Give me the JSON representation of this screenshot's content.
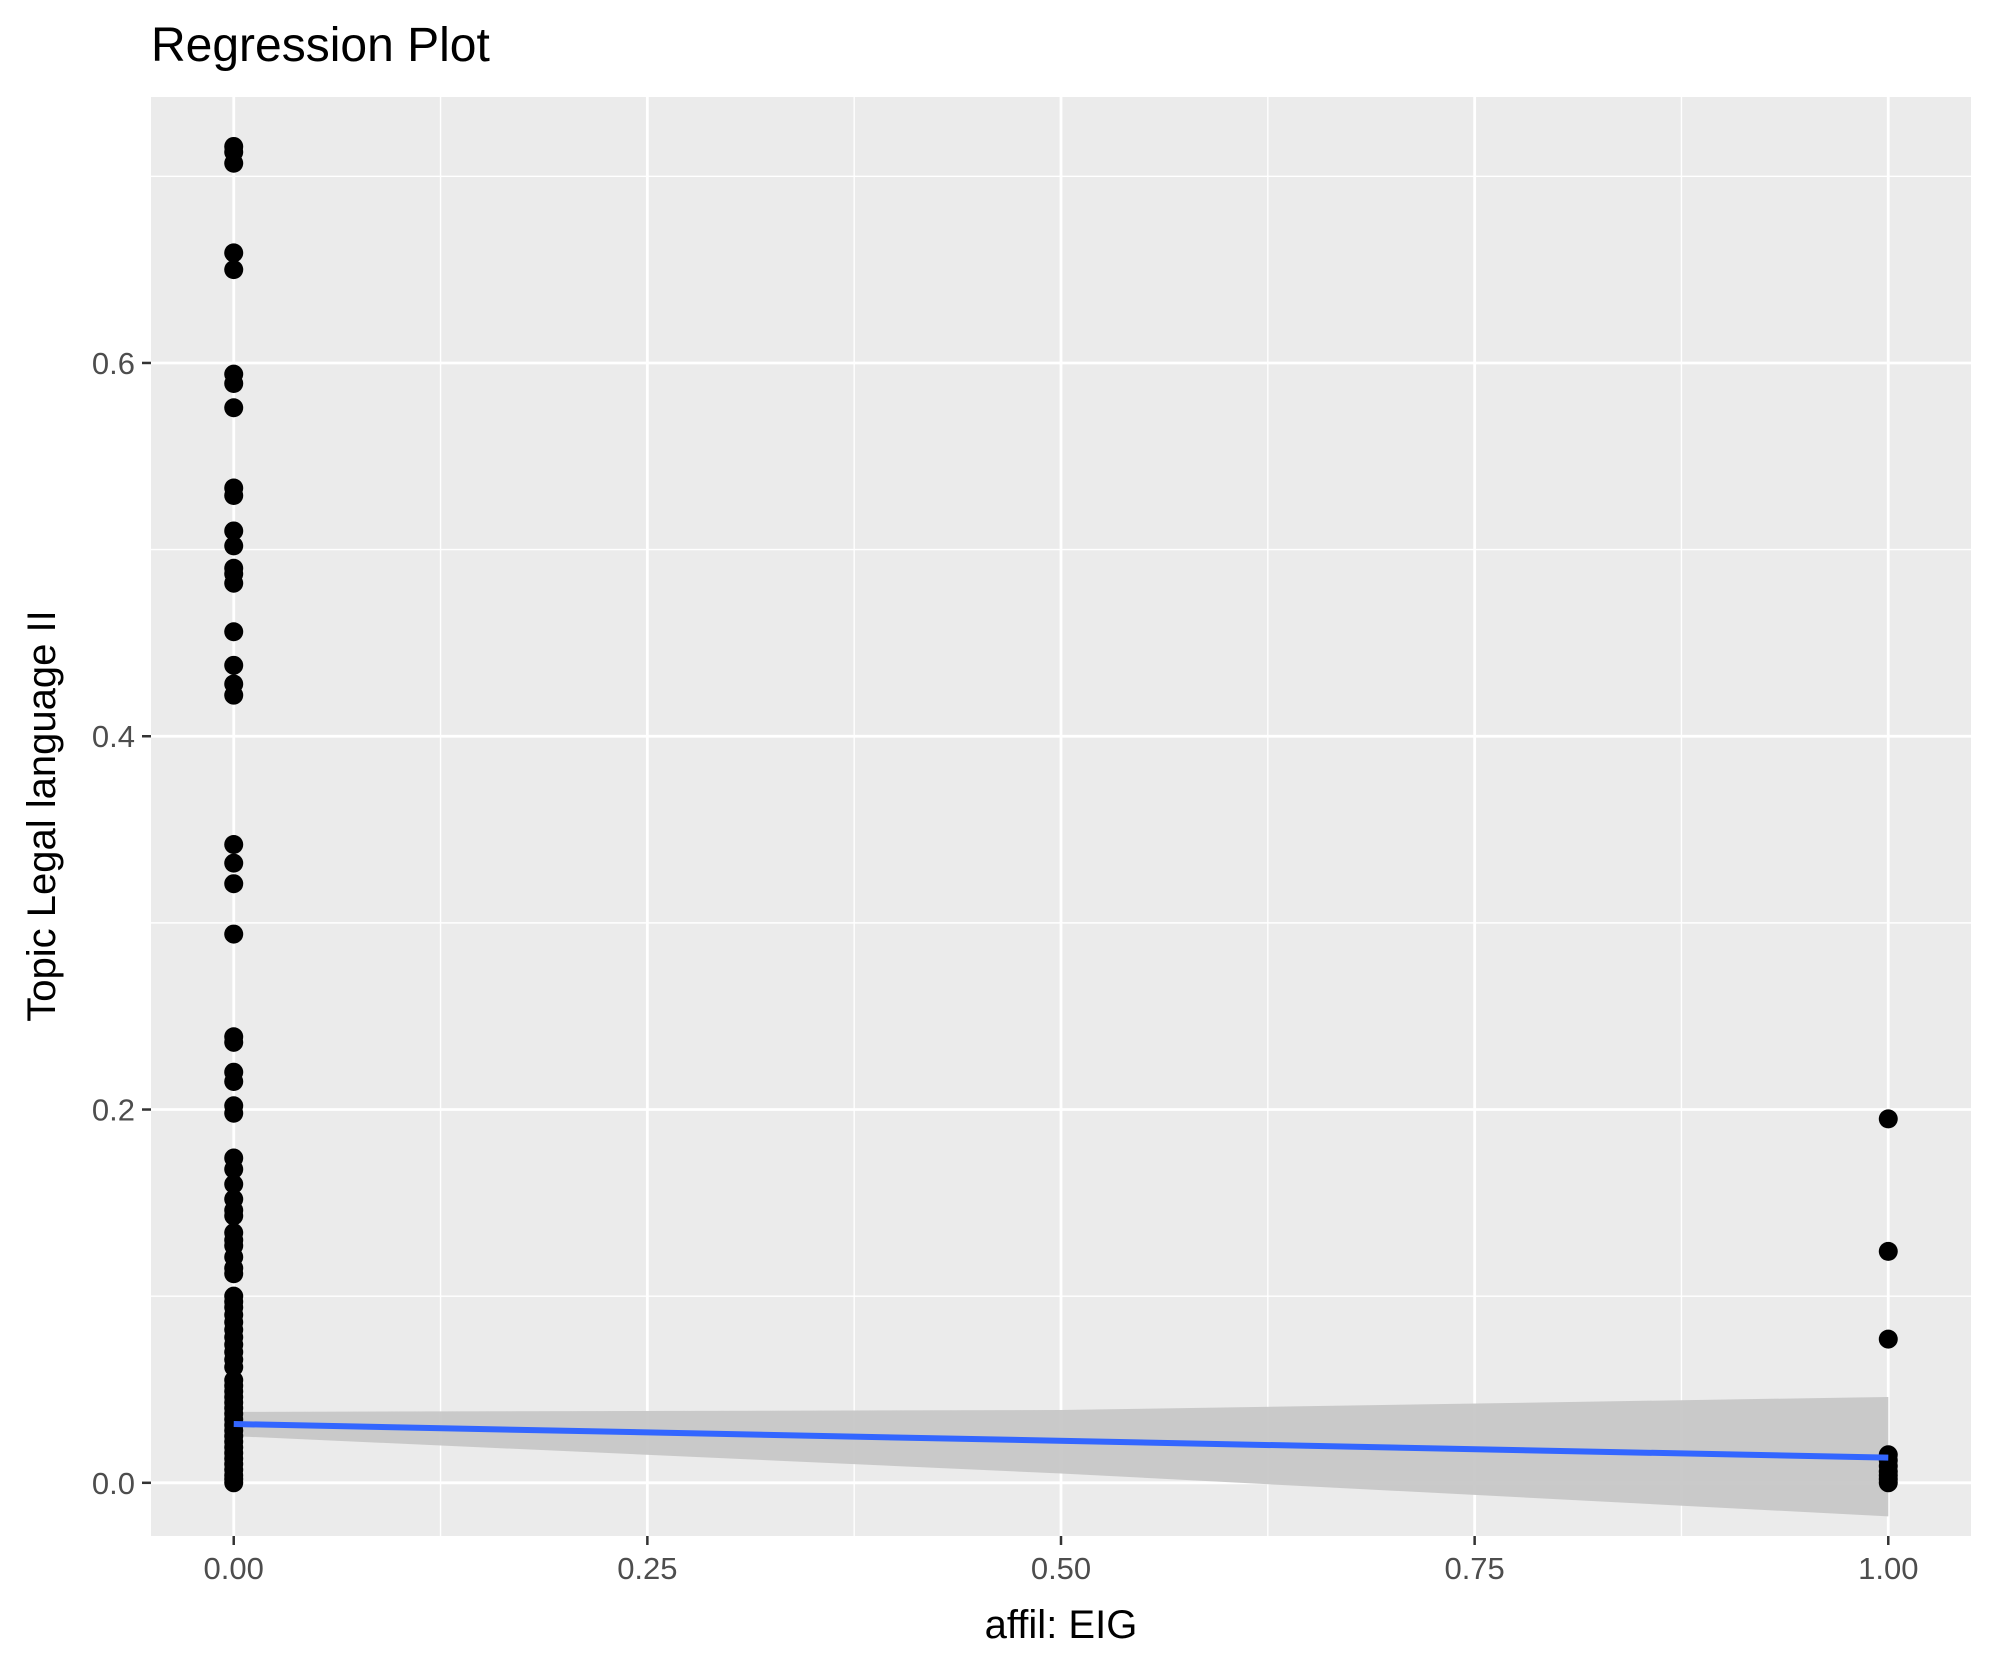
{
  "chart_data": {
    "type": "scatter",
    "title": "Regression Plot",
    "xlabel": "affil: EIG",
    "ylabel": "Topic Legal language II",
    "xlim": [
      -0.05,
      1.05
    ],
    "ylim": [
      -0.0285,
      0.7425
    ],
    "x_ticks": [
      0.0,
      0.25,
      0.5,
      0.75,
      1.0
    ],
    "x_tick_labels": [
      "0.00",
      "0.25",
      "0.50",
      "0.75",
      "1.00"
    ],
    "y_ticks": [
      0.0,
      0.2,
      0.4,
      0.6
    ],
    "y_tick_labels": [
      "0.0",
      "0.2",
      "0.4",
      "0.6"
    ],
    "grid": true,
    "background": "#ebebeb",
    "colors": {
      "points": "#000000",
      "line": "#3366ff",
      "band": "#c7c7c7",
      "grid": "#ffffff"
    },
    "points": [
      {
        "x": 0,
        "y": 0.716
      },
      {
        "x": 0,
        "y": 0.713
      },
      {
        "x": 0,
        "y": 0.707
      },
      {
        "x": 0,
        "y": 0.659
      },
      {
        "x": 0,
        "y": 0.65
      },
      {
        "x": 0,
        "y": 0.594
      },
      {
        "x": 0,
        "y": 0.589
      },
      {
        "x": 0,
        "y": 0.576
      },
      {
        "x": 0,
        "y": 0.533
      },
      {
        "x": 0,
        "y": 0.529
      },
      {
        "x": 0,
        "y": 0.51
      },
      {
        "x": 0,
        "y": 0.502
      },
      {
        "x": 0,
        "y": 0.49
      },
      {
        "x": 0,
        "y": 0.487
      },
      {
        "x": 0,
        "y": 0.482
      },
      {
        "x": 0,
        "y": 0.456
      },
      {
        "x": 0,
        "y": 0.438
      },
      {
        "x": 0,
        "y": 0.428
      },
      {
        "x": 0,
        "y": 0.422
      },
      {
        "x": 0,
        "y": 0.342
      },
      {
        "x": 0,
        "y": 0.332
      },
      {
        "x": 0,
        "y": 0.321
      },
      {
        "x": 0,
        "y": 0.294
      },
      {
        "x": 0,
        "y": 0.239
      },
      {
        "x": 0,
        "y": 0.236
      },
      {
        "x": 0,
        "y": 0.22
      },
      {
        "x": 0,
        "y": 0.215
      },
      {
        "x": 0,
        "y": 0.202
      },
      {
        "x": 0,
        "y": 0.198
      },
      {
        "x": 0,
        "y": 0.174
      },
      {
        "x": 0,
        "y": 0.168
      },
      {
        "x": 0,
        "y": 0.16
      },
      {
        "x": 0,
        "y": 0.152
      },
      {
        "x": 0,
        "y": 0.146
      },
      {
        "x": 0,
        "y": 0.143
      },
      {
        "x": 0,
        "y": 0.134
      },
      {
        "x": 0,
        "y": 0.13
      },
      {
        "x": 0,
        "y": 0.127
      },
      {
        "x": 0,
        "y": 0.121
      },
      {
        "x": 0,
        "y": 0.115
      },
      {
        "x": 0,
        "y": 0.112
      },
      {
        "x": 0,
        "y": 0.1
      },
      {
        "x": 0,
        "y": 0.097
      },
      {
        "x": 0,
        "y": 0.094
      },
      {
        "x": 0,
        "y": 0.09
      },
      {
        "x": 0,
        "y": 0.086
      },
      {
        "x": 0,
        "y": 0.082
      },
      {
        "x": 0,
        "y": 0.078
      },
      {
        "x": 0,
        "y": 0.074
      },
      {
        "x": 0,
        "y": 0.07
      },
      {
        "x": 0,
        "y": 0.066
      },
      {
        "x": 0,
        "y": 0.062
      },
      {
        "x": 0,
        "y": 0.055
      },
      {
        "x": 0,
        "y": 0.052
      },
      {
        "x": 0,
        "y": 0.049
      },
      {
        "x": 0,
        "y": 0.046
      },
      {
        "x": 0,
        "y": 0.043
      },
      {
        "x": 0,
        "y": 0.04
      },
      {
        "x": 0,
        "y": 0.037
      },
      {
        "x": 0,
        "y": 0.034
      },
      {
        "x": 0,
        "y": 0.031
      },
      {
        "x": 0,
        "y": 0.028
      },
      {
        "x": 0,
        "y": 0.025
      },
      {
        "x": 0,
        "y": 0.022
      },
      {
        "x": 0,
        "y": 0.019
      },
      {
        "x": 0,
        "y": 0.016
      },
      {
        "x": 0,
        "y": 0.013
      },
      {
        "x": 0,
        "y": 0.01
      },
      {
        "x": 0,
        "y": 0.007
      },
      {
        "x": 0,
        "y": 0.004
      },
      {
        "x": 0,
        "y": 0.002
      },
      {
        "x": 0,
        "y": 0.0
      },
      {
        "x": 1,
        "y": 0.195
      },
      {
        "x": 1,
        "y": 0.124
      },
      {
        "x": 1,
        "y": 0.077
      },
      {
        "x": 1,
        "y": 0.015
      },
      {
        "x": 1,
        "y": 0.012
      },
      {
        "x": 1,
        "y": 0.009
      },
      {
        "x": 1,
        "y": 0.006
      },
      {
        "x": 1,
        "y": 0.004
      },
      {
        "x": 1,
        "y": 0.002
      },
      {
        "x": 1,
        "y": 0.0
      }
    ],
    "regression_line": {
      "x": [
        0,
        1
      ],
      "y": [
        0.0315,
        0.0135
      ]
    },
    "confidence_band": {
      "x": [
        0,
        0.5,
        1
      ],
      "y_low": [
        0.025,
        0.005,
        -0.018
      ],
      "y_high": [
        0.038,
        0.039,
        0.046
      ]
    }
  }
}
